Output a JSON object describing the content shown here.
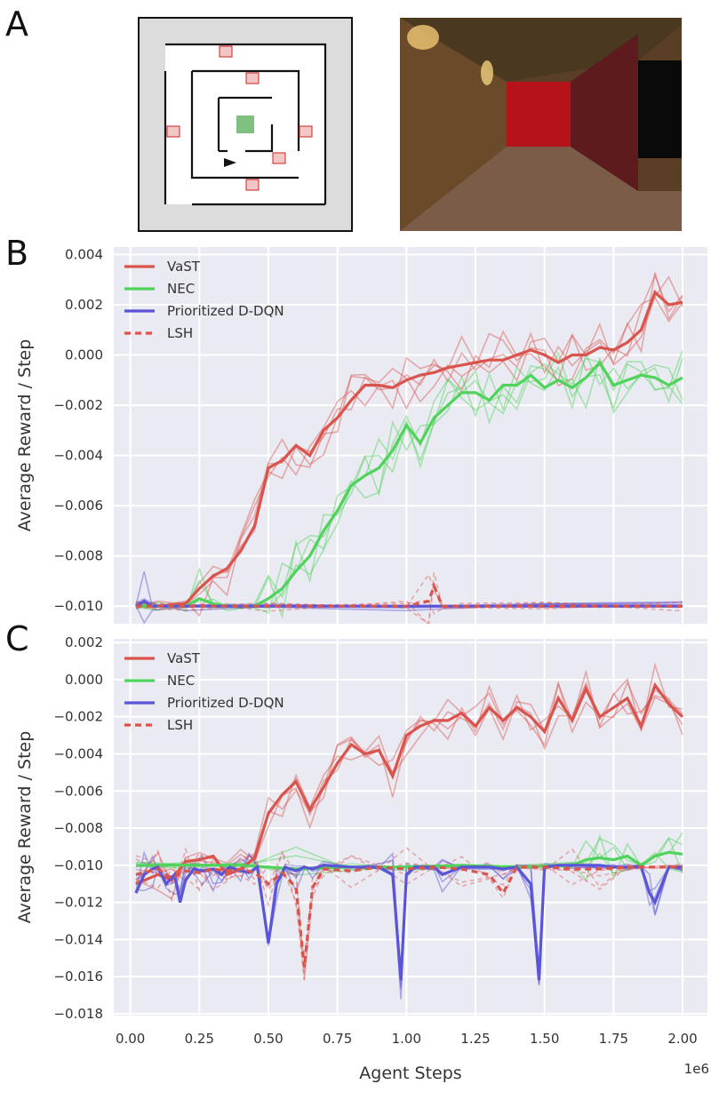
{
  "panels": {
    "a": "A",
    "b": "B",
    "c": "C"
  },
  "chart_data": [
    {
      "id": "B",
      "type": "line",
      "title": "",
      "xlabel": "",
      "ylabel": "Average Reward / Step",
      "xlim": [
        -0.06,
        2.09
      ],
      "ylim": [
        -0.0107,
        0.0043
      ],
      "yticks": [
        0.004,
        0.002,
        0.0,
        -0.002,
        -0.004,
        -0.006,
        -0.008,
        -0.01
      ],
      "ytick_labels": [
        "0.004",
        "0.002",
        "0.000",
        "−0.002",
        "−0.004",
        "−0.006",
        "−0.008",
        "−0.010"
      ],
      "legend": "top-left",
      "series": [
        {
          "name": "VaST",
          "color": "#d9544d",
          "dash": "none",
          "x": [
            0.02,
            0.1,
            0.2,
            0.25,
            0.3,
            0.35,
            0.4,
            0.45,
            0.5,
            0.55,
            0.6,
            0.65,
            0.7,
            0.75,
            0.8,
            0.85,
            0.9,
            0.95,
            1.0,
            1.05,
            1.1,
            1.15,
            1.2,
            1.25,
            1.3,
            1.35,
            1.4,
            1.45,
            1.5,
            1.55,
            1.6,
            1.65,
            1.7,
            1.75,
            1.8,
            1.85,
            1.9,
            1.95,
            2.0
          ],
          "y": [
            -0.01,
            -0.01,
            -0.0099,
            -0.0093,
            -0.0088,
            -0.0085,
            -0.0078,
            -0.0068,
            -0.0045,
            -0.0042,
            -0.0036,
            -0.004,
            -0.003,
            -0.0025,
            -0.0018,
            -0.0012,
            -0.0012,
            -0.0013,
            -0.001,
            -0.0008,
            -0.0007,
            -0.0005,
            -0.0004,
            -0.0003,
            -0.0002,
            -0.0002,
            0.0,
            0.0002,
            0.0,
            -0.0003,
            0.0,
            0.0,
            0.0003,
            0.0002,
            0.0005,
            0.001,
            0.0025,
            0.002,
            0.0021
          ]
        },
        {
          "name": "NEC",
          "color": "#4fd35b",
          "dash": "none",
          "x": [
            0.02,
            0.1,
            0.2,
            0.25,
            0.3,
            0.35,
            0.4,
            0.45,
            0.5,
            0.55,
            0.6,
            0.65,
            0.7,
            0.75,
            0.8,
            0.85,
            0.9,
            0.95,
            1.0,
            1.05,
            1.1,
            1.15,
            1.2,
            1.25,
            1.3,
            1.35,
            1.4,
            1.45,
            1.5,
            1.55,
            1.6,
            1.65,
            1.7,
            1.75,
            1.8,
            1.85,
            1.9,
            1.95,
            2.0
          ],
          "y": [
            -0.01,
            -0.01,
            -0.01,
            -0.0097,
            -0.0099,
            -0.01,
            -0.01,
            -0.01,
            -0.0097,
            -0.0093,
            -0.0086,
            -0.008,
            -0.007,
            -0.0062,
            -0.0052,
            -0.0048,
            -0.0045,
            -0.0038,
            -0.0028,
            -0.0035,
            -0.0025,
            -0.002,
            -0.0015,
            -0.0015,
            -0.0018,
            -0.0012,
            -0.0012,
            -0.0008,
            -0.0013,
            -0.001,
            -0.0013,
            -0.0009,
            -0.0003,
            -0.0012,
            -0.001,
            -0.0008,
            -0.0009,
            -0.0012,
            -0.0009
          ]
        },
        {
          "name": "Prioritized D-DQN",
          "color": "#5a55d6",
          "dash": "none",
          "x": [
            0.02,
            0.05,
            0.08,
            0.2,
            0.5,
            1.0,
            1.5,
            2.0
          ],
          "y": [
            -0.01,
            -0.0098,
            -0.01,
            -0.01,
            -0.01,
            -0.01,
            -0.01,
            -0.01
          ]
        },
        {
          "name": "LSH",
          "color": "#d9544d",
          "dash": "dashed",
          "x": [
            0.02,
            0.2,
            0.5,
            1.0,
            1.08,
            1.1,
            1.13,
            1.2,
            1.5,
            2.0
          ],
          "y": [
            -0.01,
            -0.01,
            -0.01,
            -0.01,
            -0.0098,
            -0.0092,
            -0.01,
            -0.01,
            -0.01,
            -0.01
          ]
        }
      ]
    },
    {
      "id": "C",
      "type": "line",
      "title": "",
      "xlabel": "Agent Steps",
      "ylabel": "Average Reward / Step",
      "x_offset_label": "1e6",
      "xlim": [
        -0.06,
        2.09
      ],
      "ylim": [
        -0.0181,
        0.0022
      ],
      "xticks": [
        0.0,
        0.25,
        0.5,
        0.75,
        1.0,
        1.25,
        1.5,
        1.75,
        2.0
      ],
      "xtick_labels": [
        "0.00",
        "0.25",
        "0.50",
        "0.75",
        "1.00",
        "1.25",
        "1.50",
        "1.75",
        "2.00"
      ],
      "yticks": [
        0.002,
        0.0,
        -0.002,
        -0.004,
        -0.006,
        -0.008,
        -0.01,
        -0.012,
        -0.014,
        -0.016,
        -0.018
      ],
      "ytick_labels": [
        "0.002",
        "0.000",
        "−0.002",
        "−0.004",
        "−0.006",
        "−0.008",
        "−0.010",
        "−0.012",
        "−0.014",
        "−0.016",
        "−0.018"
      ],
      "legend": "top-left",
      "series": [
        {
          "name": "VaST",
          "color": "#d9544d",
          "dash": "none",
          "x": [
            0.02,
            0.1,
            0.15,
            0.2,
            0.25,
            0.3,
            0.35,
            0.4,
            0.45,
            0.5,
            0.55,
            0.6,
            0.65,
            0.7,
            0.75,
            0.8,
            0.85,
            0.9,
            0.95,
            1.0,
            1.05,
            1.1,
            1.15,
            1.2,
            1.25,
            1.3,
            1.35,
            1.4,
            1.45,
            1.5,
            1.55,
            1.6,
            1.65,
            1.7,
            1.75,
            1.8,
            1.85,
            1.9,
            1.95,
            2.0
          ],
          "y": [
            -0.011,
            -0.0105,
            -0.0108,
            -0.0098,
            -0.0097,
            -0.0095,
            -0.0105,
            -0.0102,
            -0.0096,
            -0.0072,
            -0.0062,
            -0.0055,
            -0.007,
            -0.0058,
            -0.0045,
            -0.0035,
            -0.004,
            -0.0038,
            -0.0052,
            -0.003,
            -0.0025,
            -0.0022,
            -0.0022,
            -0.0018,
            -0.0025,
            -0.0015,
            -0.0022,
            -0.0015,
            -0.002,
            -0.0028,
            -0.001,
            -0.0022,
            -0.0005,
            -0.002,
            -0.0015,
            -0.001,
            -0.0025,
            -0.0003,
            -0.0013,
            -0.002
          ]
        },
        {
          "name": "NEC",
          "color": "#4fd35b",
          "dash": "none",
          "x": [
            0.02,
            0.2,
            0.4,
            0.6,
            0.8,
            1.0,
            1.2,
            1.4,
            1.6,
            1.65,
            1.7,
            1.75,
            1.8,
            1.85,
            1.9,
            1.95,
            2.0
          ],
          "y": [
            -0.01,
            -0.01,
            -0.01,
            -0.0102,
            -0.0101,
            -0.0101,
            -0.01,
            -0.0101,
            -0.01,
            -0.0097,
            -0.0096,
            -0.0097,
            -0.0095,
            -0.01,
            -0.0095,
            -0.0093,
            -0.0094
          ]
        },
        {
          "name": "Prioritized D-DQN",
          "color": "#5a55d6",
          "dash": "none",
          "x": [
            0.02,
            0.05,
            0.08,
            0.1,
            0.13,
            0.16,
            0.18,
            0.2,
            0.23,
            0.26,
            0.3,
            0.33,
            0.36,
            0.4,
            0.43,
            0.46,
            0.5,
            0.53,
            0.56,
            0.6,
            0.63,
            0.66,
            0.7,
            0.8,
            0.9,
            0.95,
            0.98,
            1.0,
            1.03,
            1.1,
            1.13,
            1.2,
            1.3,
            1.35,
            1.4,
            1.45,
            1.48,
            1.5,
            1.55,
            1.6,
            1.7,
            1.75,
            1.8,
            1.85,
            1.88,
            1.9,
            1.95,
            2.0
          ],
          "y": [
            -0.0115,
            -0.0105,
            -0.0102,
            -0.0101,
            -0.011,
            -0.0105,
            -0.012,
            -0.0108,
            -0.0102,
            -0.0103,
            -0.0102,
            -0.0105,
            -0.0101,
            -0.0103,
            -0.0104,
            -0.0101,
            -0.0142,
            -0.011,
            -0.0101,
            -0.0103,
            -0.0101,
            -0.0102,
            -0.01,
            -0.0101,
            -0.0101,
            -0.0105,
            -0.0162,
            -0.0105,
            -0.0101,
            -0.0101,
            -0.0105,
            -0.0101,
            -0.0101,
            -0.0102,
            -0.0101,
            -0.011,
            -0.0162,
            -0.0101,
            -0.01,
            -0.01,
            -0.01,
            -0.0101,
            -0.0101,
            -0.0101,
            -0.0115,
            -0.012,
            -0.0101,
            -0.0101
          ]
        },
        {
          "name": "LSH",
          "color": "#d9544d",
          "dash": "dashed",
          "x": [
            0.02,
            0.1,
            0.15,
            0.2,
            0.25,
            0.3,
            0.35,
            0.4,
            0.45,
            0.5,
            0.55,
            0.6,
            0.63,
            0.66,
            0.7,
            0.8,
            0.9,
            1.0,
            1.1,
            1.2,
            1.3,
            1.35,
            1.4,
            1.5,
            1.6,
            1.7,
            1.8,
            1.9,
            2.0
          ],
          "y": [
            -0.0105,
            -0.0102,
            -0.0107,
            -0.0103,
            -0.0104,
            -0.0102,
            -0.0103,
            -0.0102,
            -0.0104,
            -0.011,
            -0.0104,
            -0.0112,
            -0.0155,
            -0.0112,
            -0.0102,
            -0.0103,
            -0.0101,
            -0.0102,
            -0.0101,
            -0.0102,
            -0.0105,
            -0.0115,
            -0.0101,
            -0.0101,
            -0.0102,
            -0.0102,
            -0.0101,
            -0.0101,
            -0.0101
          ]
        }
      ]
    }
  ]
}
